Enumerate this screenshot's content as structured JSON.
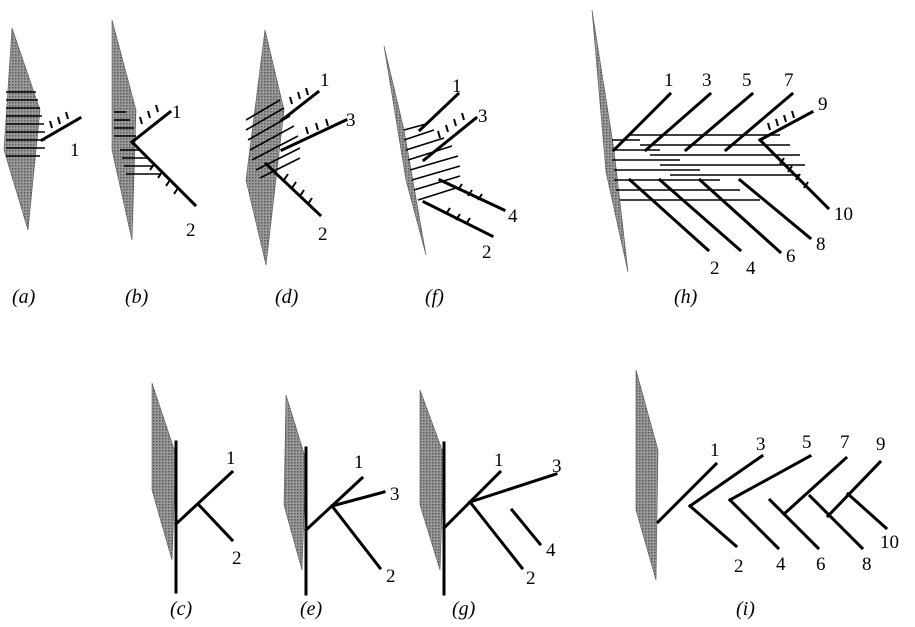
{
  "panels": {
    "a": {
      "caption": "(a)",
      "labels": [
        "1"
      ]
    },
    "b": {
      "caption": "(b)",
      "labels": [
        "1",
        "2"
      ]
    },
    "d": {
      "caption": "(d)",
      "labels": [
        "1",
        "3",
        "2"
      ]
    },
    "f": {
      "caption": "(f)",
      "labels": [
        "1",
        "3",
        "4",
        "2"
      ]
    },
    "h": {
      "caption": "(h)",
      "labels": [
        "1",
        "3",
        "5",
        "7",
        "9",
        "10",
        "8",
        "6",
        "4",
        "2"
      ]
    },
    "c": {
      "caption": "(c)",
      "labels": [
        "1",
        "2"
      ]
    },
    "e": {
      "caption": "(e)",
      "labels": [
        "1",
        "3",
        "2"
      ]
    },
    "g": {
      "caption": "(g)",
      "labels": [
        "1",
        "3",
        "4",
        "2"
      ]
    },
    "i": {
      "caption": "(i)",
      "labels": [
        "1",
        "3",
        "5",
        "7",
        "9",
        "10",
        "8",
        "6",
        "4",
        "2"
      ]
    }
  }
}
